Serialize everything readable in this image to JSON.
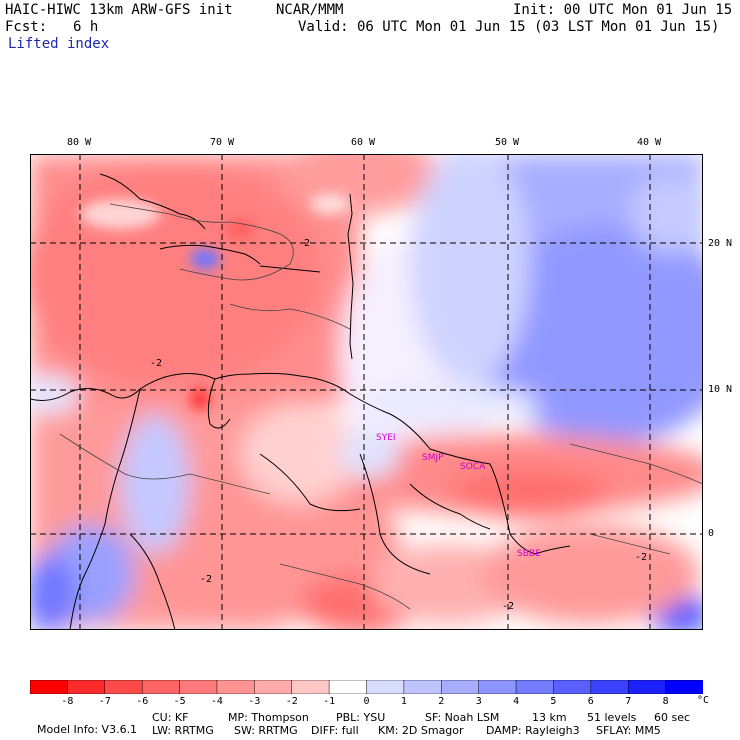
{
  "header": {
    "model_title": "HAIC-HIWC 13km ARW-GFS init",
    "org": "NCAR/MMM",
    "init": "Init: 00 UTC Mon 01 Jun 15",
    "fcst_label": "Fcst:",
    "fcst_value": "6 h",
    "valid": "Valid: 06 UTC Mon 01 Jun 15 (03 LST Mon 01 Jun 15)",
    "field": "Lifted index"
  },
  "map": {
    "lon_labels": [
      "80 W",
      "70 W",
      "60 W",
      "50 W",
      "40 W"
    ],
    "lat_labels": [
      "20 N",
      "10 N",
      "0"
    ],
    "stations": [
      "SYEI",
      "SMJP",
      "SOCA",
      "SBBE"
    ],
    "contour_label": "-2"
  },
  "colorbar": {
    "ticks": [
      "-8",
      "-7",
      "-6",
      "-5",
      "-4",
      "-3",
      "-2",
      "-1",
      "0",
      "1",
      "2",
      "3",
      "4",
      "5",
      "6",
      "7",
      "8"
    ],
    "unit": "°C",
    "colors": [
      "#ff0000",
      "#ff2a2a",
      "#ff4a4a",
      "#ff6464",
      "#ff7a7a",
      "#ff9393",
      "#ffaaaa",
      "#ffc6c6",
      "#ffffff",
      "#d8dcff",
      "#bfc4ff",
      "#a7adff",
      "#8e95ff",
      "#747cff",
      "#5960ff",
      "#3a42ff",
      "#1a20ff",
      "#0000ff"
    ]
  },
  "footer": {
    "line1": [
      "Model Info: V3.6.1",
      "CU: KF",
      "MP: Thompson",
      "PBL: YSU",
      "SF: Noah LSM",
      "13 km",
      "51 levels",
      "60 sec"
    ],
    "line2": [
      "LW: RRTMG",
      "SW: RRTMG",
      "DIFF: full",
      "KM: 2D Smagor",
      "DAMP: Rayleigh3",
      "SFLAY: MM5"
    ]
  }
}
